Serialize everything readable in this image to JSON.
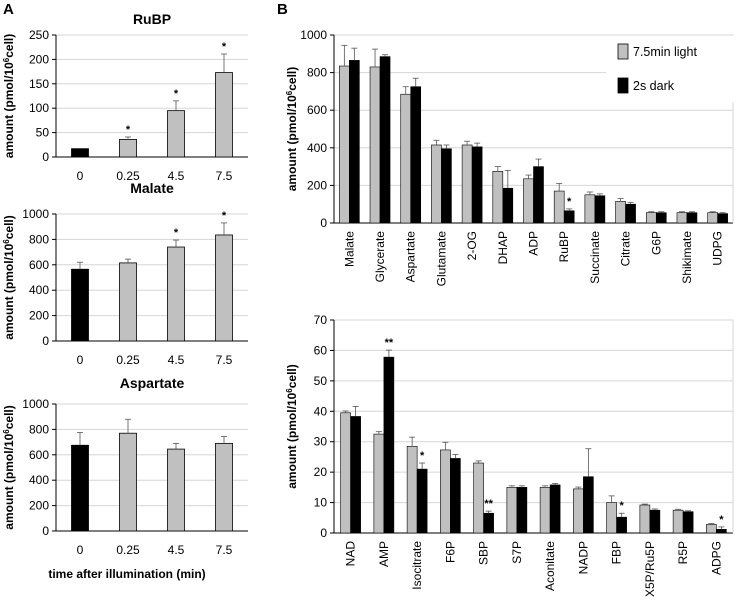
{
  "panels": {
    "A": "A",
    "B": "B"
  },
  "colors": {
    "light": "#c0c0c0",
    "dark": "#000000"
  },
  "chart_data": [
    {
      "type": "bar",
      "id": "ruBP",
      "title": "RuBP",
      "ylabel": "amount (pmol/10⁶cell)",
      "ylim": [
        0,
        250
      ],
      "yticks": [
        0,
        50,
        100,
        150,
        200,
        250
      ],
      "categories": [
        "0",
        "0.25",
        "4.5",
        "7.5"
      ],
      "values": [
        17,
        36,
        95,
        173
      ],
      "errors": [
        0,
        5,
        20,
        38
      ],
      "colors": [
        "dark",
        "light",
        "light",
        "light"
      ],
      "annotations": [
        "",
        "*",
        "*",
        "*"
      ]
    },
    {
      "type": "bar",
      "id": "malate",
      "title": "Malate",
      "ylabel": "amount (pmol/10⁶cell)",
      "ylim": [
        0,
        1000
      ],
      "yticks": [
        0,
        200,
        400,
        600,
        800,
        1000
      ],
      "categories": [
        "0",
        "0.25",
        "4.5",
        "7.5"
      ],
      "values": [
        565,
        615,
        740,
        835
      ],
      "errors": [
        55,
        30,
        55,
        95
      ],
      "colors": [
        "dark",
        "light",
        "light",
        "light"
      ],
      "annotations": [
        "",
        "",
        "*",
        "*"
      ]
    },
    {
      "type": "bar",
      "id": "aspartate",
      "title": "Aspartate",
      "ylabel": "amount (pmol/10⁶cell)",
      "xlabel": "time after illumination (min)",
      "ylim": [
        0,
        1000
      ],
      "yticks": [
        0,
        200,
        400,
        600,
        800,
        1000
      ],
      "categories": [
        "0",
        "0.25",
        "4.5",
        "7.5"
      ],
      "values": [
        675,
        770,
        645,
        690
      ],
      "errors": [
        100,
        110,
        45,
        55
      ],
      "colors": [
        "dark",
        "light",
        "light",
        "light"
      ],
      "annotations": [
        "",
        "",
        "",
        ""
      ]
    },
    {
      "type": "bar",
      "id": "b-top",
      "ylabel": "amount (pmol/10⁶cell)",
      "ylim": [
        0,
        1000
      ],
      "yticks": [
        0,
        200,
        400,
        600,
        800,
        1000
      ],
      "categories": [
        "Malate",
        "Glycerate",
        "Aspartate",
        "Glutamate",
        "2-OG",
        "DHAP",
        "ADP",
        "RuBP",
        "Succinate",
        "Citrate",
        "G6P",
        "Shikimate",
        "UDPG"
      ],
      "series": [
        {
          "name": "7.5min light",
          "color": "light",
          "values": [
            835,
            830,
            685,
            415,
            415,
            275,
            235,
            170,
            150,
            115,
            55,
            55,
            55
          ],
          "errors": [
            110,
            95,
            40,
            25,
            20,
            25,
            20,
            40,
            15,
            15,
            5,
            5,
            5
          ]
        },
        {
          "name": "2s dark",
          "color": "dark",
          "values": [
            865,
            885,
            725,
            395,
            405,
            185,
            300,
            65,
            145,
            100,
            55,
            55,
            50
          ],
          "errors": [
            65,
            10,
            45,
            20,
            20,
            95,
            40,
            10,
            10,
            10,
            5,
            5,
            5
          ]
        }
      ],
      "annotations": [
        "",
        "",
        "",
        "",
        "",
        "",
        "",
        "*",
        "",
        "",
        "",
        "",
        ""
      ],
      "legend": "top-right"
    },
    {
      "type": "bar",
      "id": "b-bottom",
      "ylabel": "amount (pmol/10⁶cell)",
      "ylim": [
        0,
        70
      ],
      "yticks": [
        0,
        10,
        20,
        30,
        40,
        50,
        60,
        70
      ],
      "categories": [
        "NAD",
        "AMP",
        "Isocitrate",
        "F6P",
        "SBP",
        "S7P",
        "Aconitate",
        "NADP",
        "FBP",
        "X5P/Ru5P",
        "R5P",
        "ADPG"
      ],
      "series": [
        {
          "name": "7.5min light",
          "color": "light",
          "values": [
            39.5,
            32.5,
            28.5,
            27.3,
            23,
            15,
            15,
            14.5,
            10,
            9.2,
            7.5,
            2.8
          ],
          "errors": [
            0.6,
            0.8,
            3,
            2.5,
            0.7,
            0.5,
            0.5,
            0.6,
            2.2,
            0.3,
            0.3,
            0.3
          ]
        },
        {
          "name": "2s dark",
          "color": "dark",
          "values": [
            38.3,
            57.8,
            21,
            24.5,
            6.5,
            15,
            15.8,
            18.5,
            5.2,
            7.5,
            7,
            1.2
          ],
          "errors": [
            3.3,
            2.3,
            2,
            1.3,
            0.7,
            0.5,
            0.5,
            9.2,
            1.3,
            0.4,
            0.3,
            0.8
          ]
        }
      ],
      "annotations": [
        "",
        "**",
        "*",
        "",
        "**",
        "",
        "",
        "",
        "*",
        "",
        "",
        "*"
      ]
    }
  ]
}
